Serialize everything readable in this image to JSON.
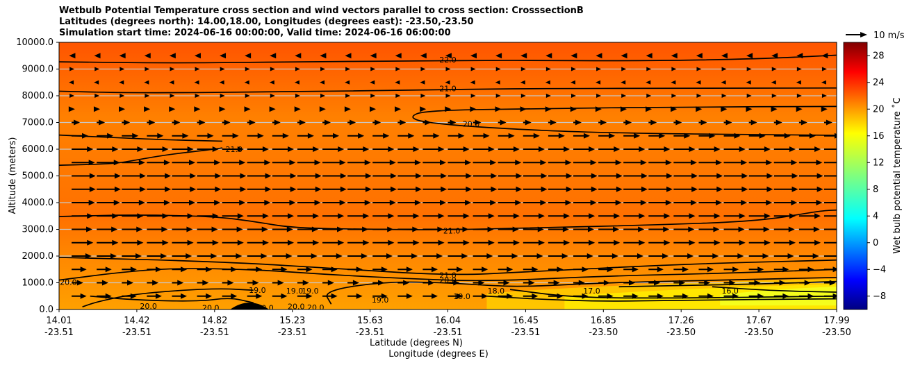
{
  "chart_data": {
    "type": "contour",
    "title_lines": [
      "Wetbulb Potential Temperature cross section and wind vectors parallel to cross section: CrosssectionB",
      "Latitudes (degrees north): 14.00,18.00, Longitudes (degrees east): -23.50,-23.50",
      "Simulation start time: 2024-06-16 00:00:00, Valid time: 2024-06-16 06:00:00"
    ],
    "ylabel": "Altitude (meters)",
    "xlabel_lat": "Latitude (degrees N)",
    "xlabel_lon": "Longitude (degrees E)",
    "ylim": [
      0,
      10000
    ],
    "y_ticks": [
      "0.0",
      "1000.0",
      "2000.0",
      "3000.0",
      "4000.0",
      "5000.0",
      "6000.0",
      "7000.0",
      "8000.0",
      "9000.0",
      "10000.0"
    ],
    "x_ticks": [
      {
        "lat": "14.01",
        "lon": "-23.51"
      },
      {
        "lat": "14.42",
        "lon": "-23.51"
      },
      {
        "lat": "14.82",
        "lon": "-23.51"
      },
      {
        "lat": "15.23",
        "lon": "-23.51"
      },
      {
        "lat": "15.63",
        "lon": "-23.51"
      },
      {
        "lat": "16.04",
        "lon": "-23.51"
      },
      {
        "lat": "16.45",
        "lon": "-23.51"
      },
      {
        "lat": "16.85",
        "lon": "-23.50"
      },
      {
        "lat": "17.26",
        "lon": "-23.50"
      },
      {
        "lat": "17.67",
        "lon": "-23.50"
      },
      {
        "lat": "17.99",
        "lon": "-23.50"
      }
    ],
    "horizontal_grid": true,
    "colorbar": {
      "label": "Wet bulb potential temperature ˚C",
      "range": [
        -10,
        30
      ],
      "colormap": "jet",
      "ticks": [
        "-8",
        "-4",
        "0",
        "4",
        "8",
        "12",
        "16",
        "20",
        "24",
        "28"
      ]
    },
    "quiver_key": {
      "label": "10 m/s"
    },
    "contour_labels": [
      {
        "text": "22.0",
        "x": 0.5,
        "alt": 9350
      },
      {
        "text": "21.0",
        "x": 0.5,
        "alt": 8270
      },
      {
        "text": "20.0",
        "x": 0.53,
        "alt": 6950
      },
      {
        "text": "21.0",
        "x": 0.225,
        "alt": 6000
      },
      {
        "text": "21.0",
        "x": 0.505,
        "alt": 2950
      },
      {
        "text": "21.0",
        "x": 0.5,
        "alt": 1280
      },
      {
        "text": "20.0",
        "x": 0.5,
        "alt": 1100
      },
      {
        "text": "20.0",
        "x": 0.012,
        "alt": 1030
      },
      {
        "text": "19.0",
        "x": 0.255,
        "alt": 730
      },
      {
        "text": "19.0",
        "x": 0.303,
        "alt": 700
      },
      {
        "text": "19.0",
        "x": 0.323,
        "alt": 700
      },
      {
        "text": "19.0",
        "x": 0.413,
        "alt": 370
      },
      {
        "text": "19.0",
        "x": 0.518,
        "alt": 500
      },
      {
        "text": "18.0",
        "x": 0.562,
        "alt": 700
      },
      {
        "text": "17.0",
        "x": 0.685,
        "alt": 700
      },
      {
        "text": "16.0",
        "x": 0.863,
        "alt": 700
      },
      {
        "text": "20.0",
        "x": 0.115,
        "alt": 130
      },
      {
        "text": "20.0",
        "x": 0.195,
        "alt": 70
      },
      {
        "text": "20.0",
        "x": 0.265,
        "alt": 60
      },
      {
        "text": "20.0",
        "x": 0.305,
        "alt": 120
      },
      {
        "text": "20.0",
        "x": 0.33,
        "alt": 80
      }
    ],
    "contour_lines": [
      {
        "level": "22.0",
        "points": [
          [
            0,
            9270
          ],
          [
            0.15,
            9220
          ],
          [
            0.3,
            9270
          ],
          [
            0.45,
            9300
          ],
          [
            0.58,
            9330
          ],
          [
            0.75,
            9300
          ],
          [
            0.9,
            9380
          ],
          [
            1,
            9520
          ]
        ]
      },
      {
        "level": "21.0",
        "points": [
          [
            0,
            8170
          ],
          [
            0.1,
            8100
          ],
          [
            0.3,
            8150
          ],
          [
            0.45,
            8210
          ],
          [
            0.6,
            8270
          ],
          [
            0.8,
            8280
          ],
          [
            1,
            8290
          ]
        ]
      },
      {
        "level": "20.0",
        "points": [
          [
            1,
            7600
          ],
          [
            0.8,
            7580
          ],
          [
            0.62,
            7520
          ],
          [
            0.47,
            7450
          ],
          [
            0.45,
            7200
          ],
          [
            0.47,
            7000
          ],
          [
            0.55,
            6800
          ],
          [
            0.7,
            6600
          ],
          [
            1,
            6520
          ]
        ]
      },
      {
        "level": "21.0",
        "points": [
          [
            0,
            6530
          ],
          [
            0.08,
            6420
          ],
          [
            0.14,
            6350
          ],
          [
            0.21,
            6300
          ]
        ]
      },
      {
        "level": "21.0",
        "points": [
          [
            0,
            5400
          ],
          [
            0.07,
            5450
          ],
          [
            0.1,
            5600
          ],
          [
            0.14,
            5800
          ],
          [
            0.2,
            6000
          ],
          [
            0.21,
            6050
          ]
        ]
      },
      {
        "level": "21.0",
        "points": [
          [
            0,
            3480
          ],
          [
            0.1,
            3550
          ],
          [
            0.2,
            3480
          ],
          [
            0.25,
            3300
          ],
          [
            0.3,
            3050
          ],
          [
            0.4,
            3000
          ],
          [
            0.5,
            2980
          ],
          [
            0.6,
            3050
          ],
          [
            0.75,
            3150
          ],
          [
            0.9,
            3300
          ],
          [
            0.98,
            3700
          ],
          [
            1,
            3720
          ]
        ]
      },
      {
        "level": "21.0",
        "points": [
          [
            0,
            1950
          ],
          [
            0.2,
            1800
          ],
          [
            0.35,
            1550
          ],
          [
            0.5,
            1270
          ],
          [
            0.6,
            1400
          ],
          [
            0.8,
            1700
          ],
          [
            1,
            1850
          ]
        ]
      },
      {
        "level": "20.0",
        "points": [
          [
            0,
            1100
          ],
          [
            0.08,
            1400
          ],
          [
            0.15,
            1550
          ],
          [
            0.25,
            1500
          ],
          [
            0.35,
            1300
          ],
          [
            0.45,
            1150
          ],
          [
            0.55,
            1050
          ],
          [
            0.7,
            1250
          ],
          [
            0.85,
            1350
          ],
          [
            1,
            1500
          ]
        ]
      },
      {
        "level": "20.0",
        "points": [
          [
            0.03,
            100
          ],
          [
            0.05,
            300
          ],
          [
            0.1,
            600
          ],
          [
            0.2,
            800
          ],
          [
            0.25,
            720
          ]
        ]
      },
      {
        "level": "19.0",
        "points": [
          [
            0.35,
            200
          ],
          [
            0.34,
            700
          ],
          [
            0.42,
            1050
          ],
          [
            0.5,
            1000
          ],
          [
            0.55,
            900
          ],
          [
            0.6,
            850
          ],
          [
            0.7,
            1000
          ],
          [
            0.85,
            1100
          ],
          [
            1,
            1200
          ]
        ]
      },
      {
        "level": "19.0",
        "points": [
          [
            0.55,
            500
          ],
          [
            0.62,
            380
          ],
          [
            0.7,
            300
          ],
          [
            0.8,
            350
          ],
          [
            1,
            400
          ]
        ]
      },
      {
        "level": "18.0",
        "points": [
          [
            0.58,
            750
          ],
          [
            0.66,
            450
          ],
          [
            0.78,
            420
          ],
          [
            1,
            500
          ]
        ]
      },
      {
        "level": "17.0",
        "points": [
          [
            0.72,
            850
          ],
          [
            0.8,
            900
          ],
          [
            0.9,
            950
          ],
          [
            1,
            1050
          ]
        ]
      },
      {
        "level": "16.0",
        "points": [
          [
            0.84,
            850
          ],
          [
            0.92,
            700
          ],
          [
            1,
            650
          ]
        ]
      },
      {
        "level": "20.0",
        "points": [
          [
            0.04,
            500
          ],
          [
            0.1,
            350
          ],
          [
            0.18,
            300
          ],
          [
            0.22,
            450
          ],
          [
            0.25,
            250
          ]
        ]
      }
    ],
    "terrain": {
      "x_start": 0.22,
      "x_end": 0.27,
      "peak_alt": 200
    },
    "wind_rows": [
      {
        "alt": 9500,
        "u": -0.15
      },
      {
        "alt": 9000,
        "u": 0.0
      },
      {
        "alt": 8500,
        "u": -0.1
      },
      {
        "alt": 8000,
        "u": 0.0
      },
      {
        "alt": 7500,
        "u": 0.2
      },
      {
        "alt": 7000,
        "u": 0.5
      },
      {
        "alt": 6500,
        "u": 1.0
      },
      {
        "alt": 6000,
        "u": 1.3
      },
      {
        "alt": 5500,
        "u": 1.4
      },
      {
        "alt": 5000,
        "u": 1.45
      },
      {
        "alt": 4500,
        "u": 1.45
      },
      {
        "alt": 4000,
        "u": 1.4
      },
      {
        "alt": 3500,
        "u": 1.3
      },
      {
        "alt": 3000,
        "u": 1.25
      },
      {
        "alt": 2500,
        "u": 1.3
      },
      {
        "alt": 2000,
        "u": 1.2
      },
      {
        "alt": 1500,
        "u": 0.9
      },
      {
        "alt": 1000,
        "u": 0.7
      },
      {
        "alt": 500,
        "u": 0.9
      }
    ]
  }
}
